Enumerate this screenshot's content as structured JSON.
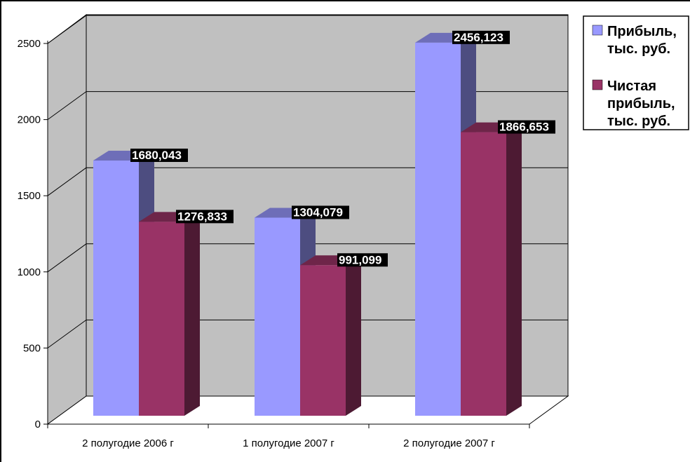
{
  "chart_data": {
    "type": "bar",
    "categories": [
      "2 полугодие 2006 г",
      "1 полугодие 2007 г",
      "2 полугодие 2007 г"
    ],
    "series": [
      {
        "name": "Прибыль, тыс. руб.",
        "legend_lines": [
          "Прибыль,",
          "тыс. руб."
        ],
        "color": "#9999FF",
        "values": [
          1680.043,
          1304.079,
          2456.123
        ],
        "labels": [
          "1680,043",
          "1304,079",
          "2456,123"
        ]
      },
      {
        "name": "Чистая прибыль, тыс. руб.",
        "legend_lines": [
          "Чистая",
          "прибыль,",
          "тыс. руб."
        ],
        "color": "#993366",
        "values": [
          1276.833,
          991.099,
          1866.653
        ],
        "labels": [
          "1276,833",
          "991,099",
          "1866,653"
        ]
      }
    ],
    "y_ticks": [
      "0",
      "500",
      "1000",
      "1500",
      "2000",
      "2500"
    ],
    "ylim": [
      0,
      2500
    ],
    "grid": true,
    "legend": "right",
    "wall_color": "#C0C0C0",
    "bar_style": "3d"
  }
}
